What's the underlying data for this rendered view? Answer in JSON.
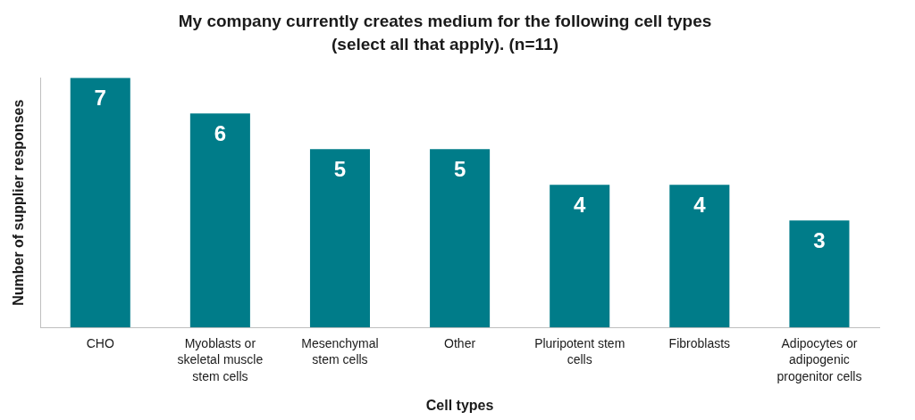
{
  "chart_data": {
    "type": "bar",
    "title": [
      "My company currently creates medium for the following cell types",
      "(select all that apply). (n=11)"
    ],
    "x_label": "Cell types",
    "y_label": "Number of supplier responses",
    "categories": [
      "CHO",
      [
        "Myoblasts or",
        "skeletal muscle",
        "stem cells"
      ],
      [
        "Mesenchymal",
        "stem cells"
      ],
      "Other",
      [
        "Pluripotent stem",
        "cells"
      ],
      "Fibroblasts",
      [
        "Adipocytes or",
        "adipogenic",
        "progenitor cells"
      ]
    ],
    "values": [
      7,
      6,
      5,
      5,
      4,
      4,
      3
    ],
    "color": "#007c89",
    "ylim": [
      0,
      7
    ],
    "grid": false,
    "data_labels": true,
    "tick_labels": "x"
  }
}
